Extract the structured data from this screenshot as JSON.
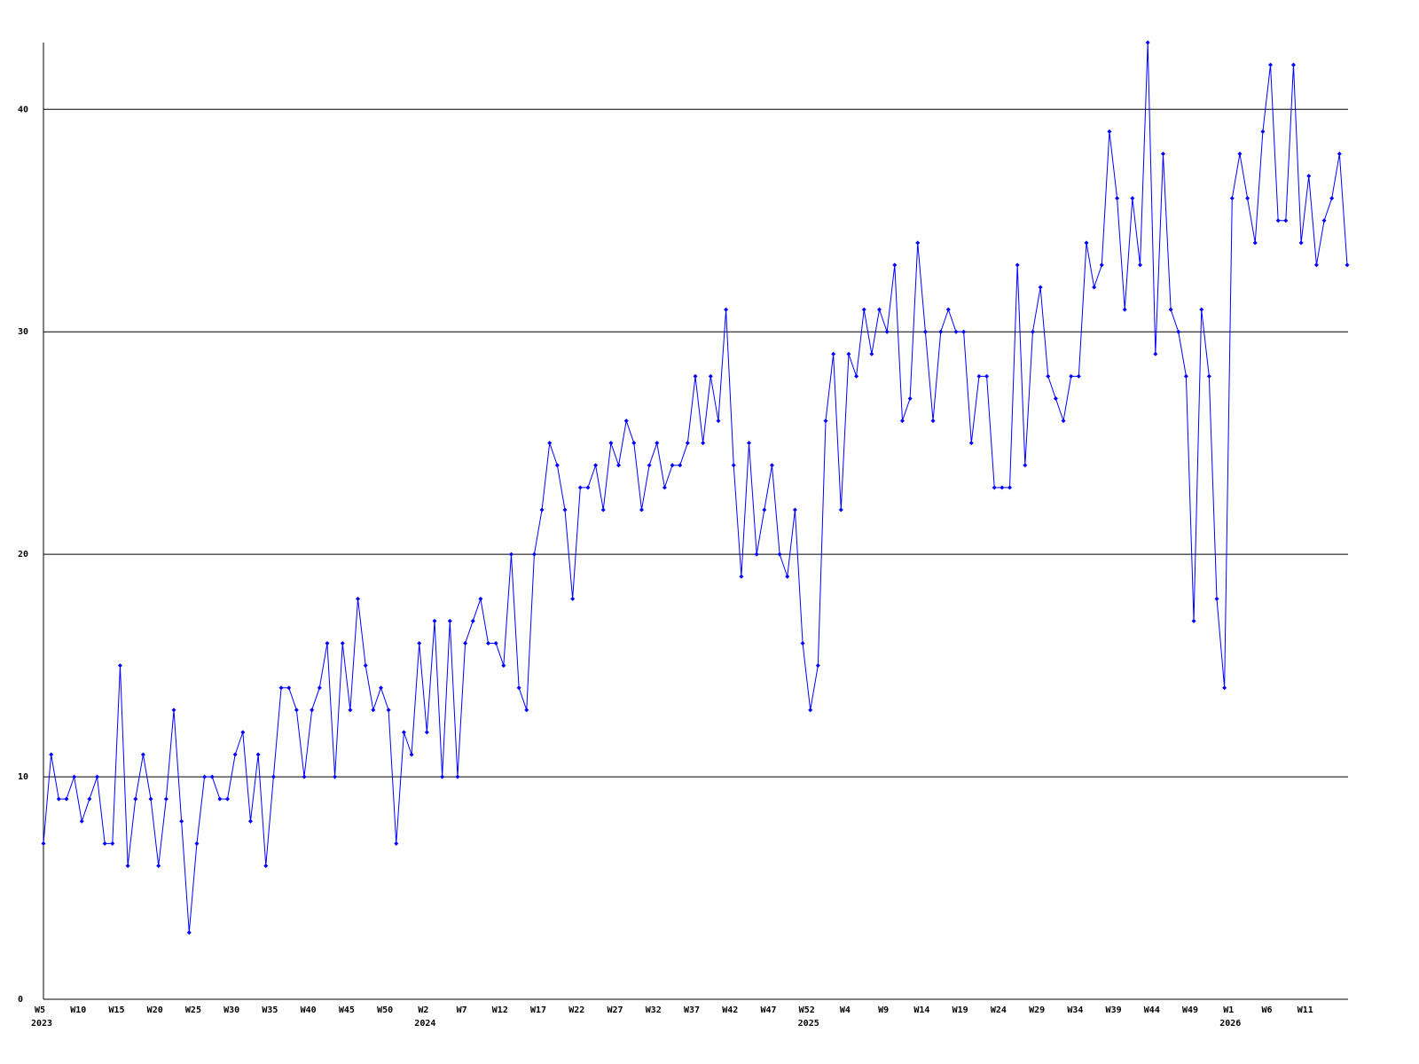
{
  "chart_data": {
    "type": "line",
    "categories": [
      "W5",
      null,
      null,
      null,
      null,
      "W10",
      null,
      null,
      null,
      null,
      "W15",
      null,
      null,
      null,
      null,
      "W20",
      null,
      null,
      null,
      null,
      "W25",
      null,
      null,
      null,
      null,
      "W30",
      null,
      null,
      null,
      null,
      "W35",
      null,
      null,
      null,
      null,
      "W40",
      null,
      null,
      null,
      null,
      "W45",
      null,
      null,
      null,
      null,
      "W50",
      null,
      null,
      null,
      null,
      "W2",
      null,
      null,
      null,
      null,
      "W7",
      null,
      null,
      null,
      null,
      "W12",
      null,
      null,
      null,
      null,
      "W17",
      null,
      null,
      null,
      null,
      "W22",
      null,
      null,
      null,
      null,
      "W27",
      null,
      null,
      null,
      null,
      "W32",
      null,
      null,
      null,
      null,
      "W37",
      null,
      null,
      null,
      null,
      "W42",
      null,
      null,
      null,
      null,
      "W47",
      null,
      null,
      null,
      null,
      "W52",
      null,
      null,
      null,
      null,
      "W4",
      null,
      null,
      null,
      null,
      "W9",
      null,
      null,
      null,
      null,
      "W14",
      null,
      null,
      null,
      null,
      "W19",
      null,
      null,
      null,
      null,
      "W24",
      null,
      null,
      null,
      null,
      "W29",
      null,
      null,
      null,
      null,
      "W34",
      null,
      null,
      null,
      null,
      "W39",
      null,
      null,
      null,
      null,
      "W44",
      null,
      null,
      null,
      null,
      "W49",
      null,
      null,
      null,
      null,
      "W1",
      null,
      null,
      null,
      null,
      "W6",
      null,
      null,
      null,
      null,
      "W11",
      null,
      null,
      null,
      null,
      null
    ],
    "years": [
      "2023",
      null,
      null,
      null,
      null,
      null,
      null,
      null,
      null,
      null,
      null,
      null,
      null,
      null,
      null,
      null,
      null,
      null,
      null,
      null,
      null,
      null,
      null,
      null,
      null,
      null,
      null,
      null,
      null,
      null,
      null,
      null,
      null,
      null,
      null,
      null,
      null,
      null,
      null,
      null,
      null,
      null,
      null,
      null,
      null,
      null,
      null,
      null,
      null,
      null,
      "2024",
      null,
      null,
      null,
      null,
      null,
      null,
      null,
      null,
      null,
      null,
      null,
      null,
      null,
      null,
      null,
      null,
      null,
      null,
      null,
      null,
      null,
      null,
      null,
      null,
      null,
      null,
      null,
      null,
      null,
      null,
      null,
      null,
      null,
      null,
      null,
      null,
      null,
      null,
      null,
      null,
      null,
      null,
      null,
      null,
      null,
      null,
      null,
      null,
      null,
      "2025",
      null,
      null,
      null,
      null,
      null,
      null,
      null,
      null,
      null,
      null,
      null,
      null,
      null,
      null,
      null,
      null,
      null,
      null,
      null,
      null,
      null,
      null,
      null,
      null,
      null,
      null,
      null,
      null,
      null,
      null,
      null,
      null,
      null,
      null,
      null,
      null,
      null,
      null,
      null,
      null,
      null,
      null,
      null,
      null,
      null,
      null,
      null,
      null,
      null,
      null,
      null,
      null,
      null,
      null,
      "2026",
      null,
      null,
      null,
      null,
      null,
      null,
      null,
      null,
      null,
      null,
      null,
      null,
      null,
      null,
      null
    ],
    "values": [
      7,
      11,
      9,
      9,
      10,
      8,
      9,
      10,
      7,
      7,
      15,
      6,
      9,
      11,
      9,
      6,
      9,
      13,
      8,
      3,
      7,
      10,
      10,
      9,
      9,
      11,
      12,
      8,
      11,
      6,
      10,
      14,
      14,
      13,
      10,
      13,
      14,
      16,
      10,
      16,
      13,
      18,
      15,
      13,
      14,
      13,
      7,
      12,
      11,
      16,
      12,
      17,
      10,
      17,
      10,
      16,
      17,
      18,
      16,
      16,
      15,
      20,
      14,
      13,
      20,
      22,
      25,
      24,
      22,
      18,
      23,
      23,
      24,
      22,
      25,
      24,
      26,
      25,
      22,
      24,
      25,
      23,
      24,
      24,
      25,
      28,
      25,
      28,
      26,
      31,
      24,
      19,
      25,
      20,
      22,
      24,
      20,
      19,
      22,
      16,
      13,
      15,
      26,
      29,
      22,
      29,
      28,
      31,
      29,
      31,
      30,
      33,
      26,
      27,
      34,
      30,
      26,
      30,
      31,
      30,
      30,
      25,
      28,
      28,
      23,
      23,
      23,
      33,
      24,
      30,
      32,
      28,
      27,
      26,
      28,
      28,
      34,
      32,
      33,
      39,
      36,
      31,
      36,
      33,
      43,
      29,
      38,
      31,
      30,
      28,
      17,
      31,
      28,
      18,
      14,
      36,
      38,
      36,
      34,
      39,
      42,
      35,
      35,
      42,
      34,
      37,
      33,
      35,
      36,
      38,
      33
    ],
    "color": "#0000ff",
    "ylim": [
      0,
      43
    ],
    "yticks": [
      0,
      10,
      20,
      30,
      40
    ],
    "grid": true
  }
}
